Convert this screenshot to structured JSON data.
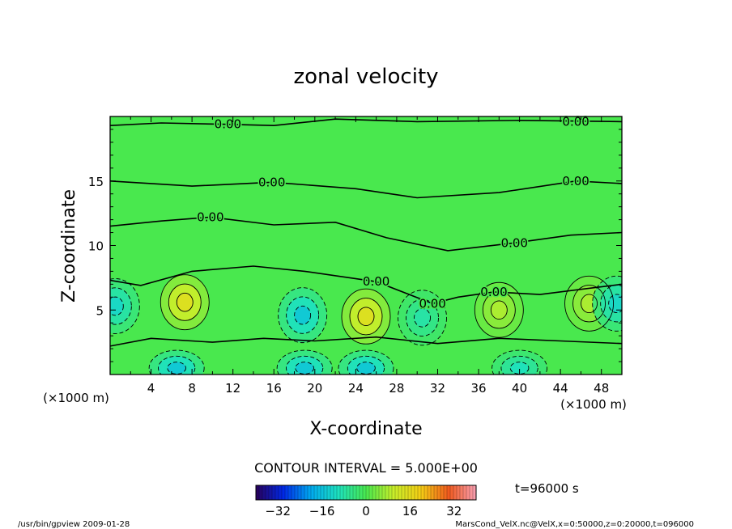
{
  "chart_data": {
    "type": "contour",
    "title": "zonal velocity",
    "xlabel": "X-coordinate",
    "ylabel": "Z-coordinate",
    "x_unit": "(×1000 m)",
    "y_unit": "(×1000 m)",
    "xlim": [
      0,
      50
    ],
    "ylim": [
      0,
      20
    ],
    "xticks": [
      4,
      8,
      12,
      16,
      20,
      24,
      28,
      32,
      36,
      40,
      44,
      48
    ],
    "yticks": [
      5,
      10,
      15
    ],
    "contour_interval_text": "CONTOUR INTERVAL = 5.000E+00",
    "contour_level_label": "0.00",
    "zero_contour_labels": [
      {
        "x": 11.5,
        "z": 19.4
      },
      {
        "x": 15.8,
        "z": 14.9
      },
      {
        "x": 9.8,
        "z": 12.2
      },
      {
        "x": 39.5,
        "z": 10.2
      },
      {
        "x": 26,
        "z": 7.2
      },
      {
        "x": 31.5,
        "z": 5.5
      },
      {
        "x": 37.5,
        "z": 6.4
      },
      {
        "x": 45.5,
        "z": 15.0
      },
      {
        "x": 45.5,
        "z": 19.6
      }
    ],
    "colorbar": {
      "range": [
        -40,
        40
      ],
      "ticks": [
        -32,
        -16,
        0,
        16,
        32
      ],
      "tick_labels": [
        "−32",
        "−16",
        "0",
        "16",
        "32"
      ]
    },
    "time_label": "t=96000 s",
    "features": {
      "positive_cores": [
        {
          "x": 7.3,
          "z": 5.6,
          "max": 15
        },
        {
          "x": 25.0,
          "z": 4.5,
          "max": 15
        },
        {
          "x": 38.0,
          "z": 5.0,
          "max": 8
        },
        {
          "x": 46.8,
          "z": 5.5,
          "max": 8
        }
      ],
      "negative_cores": [
        {
          "x": 0.5,
          "z": 5.3,
          "min": -12
        },
        {
          "x": 18.8,
          "z": 4.6,
          "min": -15
        },
        {
          "x": 30.5,
          "z": 4.4,
          "min": -8
        },
        {
          "x": 49.5,
          "z": 5.5,
          "min": -12
        },
        {
          "x": 6.5,
          "z": 0.5,
          "min": -15
        },
        {
          "x": 19.0,
          "z": 0.5,
          "min": -15
        },
        {
          "x": 25.0,
          "z": 0.5,
          "min": -15
        },
        {
          "x": 40.0,
          "z": 0.5,
          "min": -10
        }
      ]
    }
  },
  "footer": {
    "left": "/usr/bin/gpview   2009-01-28",
    "right": "MarsCond_VelX.nc@VelX,x=0:50000,z=0:20000,t=096000"
  },
  "colors": {
    "background_field": "#49e84e",
    "positive": "#c6ee2a",
    "negative": "#2adcb4",
    "frame": "#000000"
  }
}
